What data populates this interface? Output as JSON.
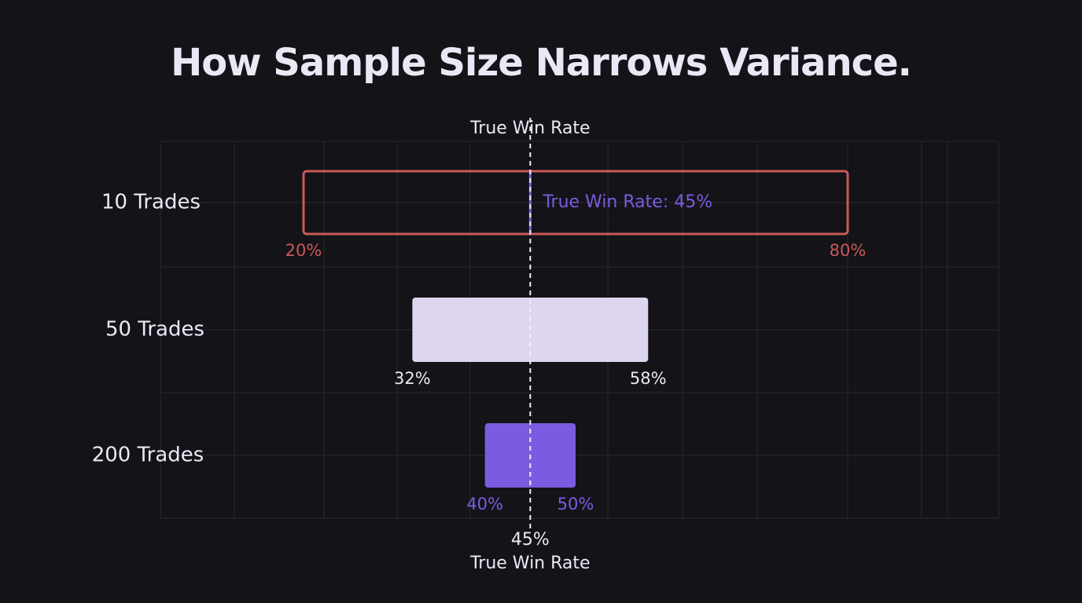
{
  "title": "How Sample Size Narrows Variance.",
  "colors": {
    "background": "#141318",
    "grid": "#2a2830",
    "text": "#ebe8f5",
    "red": "#c85a5a",
    "light": "#ddd6ee",
    "purple": "#7b5ce0"
  },
  "chart_data": {
    "type": "bar",
    "orientation": "horizontal-range",
    "categories": [
      "10 Trades",
      "50 Trades",
      "200 Trades"
    ],
    "series": [
      {
        "ranges": [
          {
            "low": 20,
            "high": 80,
            "low_label": "20%",
            "high_label": "80%",
            "style": "outline",
            "color": "#c85a5a"
          },
          {
            "low": 32,
            "high": 58,
            "low_label": "32%",
            "high_label": "58%",
            "style": "filled",
            "color": "#ddd6ee"
          },
          {
            "low": 40,
            "high": 50,
            "low_label": "40%",
            "high_label": "50%",
            "style": "filled",
            "color": "#7b5ce0"
          }
        ]
      }
    ],
    "reference_line": {
      "value": 45,
      "top_label": "True Win Rate",
      "bottom_value_label": "45%",
      "bottom_label": "True Win Rate",
      "style": "dashed"
    },
    "annotation": {
      "text": "True Win Rate: 45%",
      "category": "10 Trades",
      "color": "#7b5ce0"
    },
    "grid": true,
    "xlabel": "",
    "ylabel": ""
  }
}
